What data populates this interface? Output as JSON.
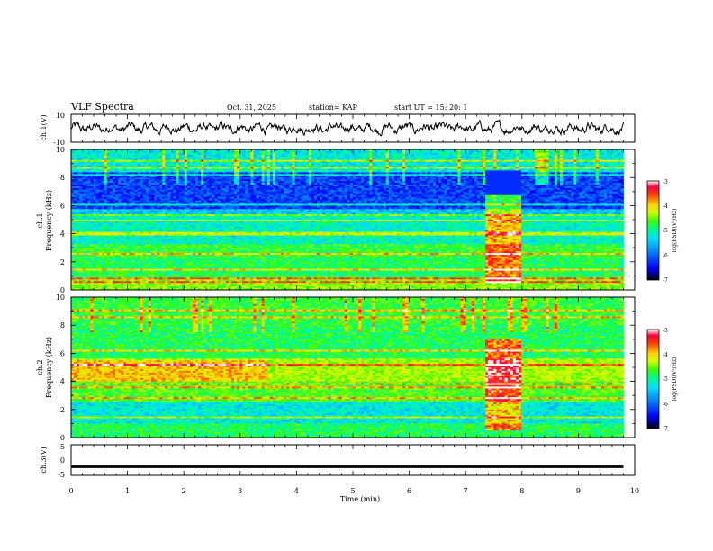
{
  "header": {
    "title": "VLF Spectra",
    "date": "Oct. 31, 2025",
    "station": "station= KAP",
    "start": "start  UT =   15: 20: 1"
  },
  "chart_data": [
    {
      "type": "line",
      "name": "ch1-waveform",
      "ylabel": "ch.1(V)",
      "ylim": [
        -10,
        10
      ],
      "yticklabels": [
        "10",
        "-10"
      ],
      "xlim": [
        0,
        10
      ],
      "series": [
        {
          "name": "ch.1",
          "x_range": [
            0,
            9.8
          ],
          "baseline": 0,
          "amplitude": 6,
          "description_values": "noisy oscillation between about -8 and 8 V"
        }
      ]
    },
    {
      "type": "heatmap",
      "name": "ch1-spectrogram",
      "ylabel_line1": "ch.1",
      "ylabel_line2": "Frequency (kHz)",
      "ylim": [
        0,
        10
      ],
      "yticks": [
        "0",
        "2",
        "4",
        "6",
        "8",
        "10"
      ],
      "xlim": [
        0,
        10
      ],
      "data_x_range": [
        0,
        9.8
      ],
      "burst_interval": [
        7.35,
        8.0
      ],
      "bands_khz": [
        {
          "lo": 0,
          "hi": 0.9,
          "level": -4.6
        },
        {
          "lo": 0.9,
          "hi": 2.2,
          "level": -5.0
        },
        {
          "lo": 2.2,
          "hi": 3.2,
          "level": -4.9
        },
        {
          "lo": 3.2,
          "hi": 5.3,
          "level": -5.3
        },
        {
          "lo": 5.3,
          "hi": 5.8,
          "level": -5.6
        },
        {
          "lo": 5.8,
          "hi": 8.4,
          "level": -6.3
        },
        {
          "lo": 8.4,
          "hi": 10,
          "level": -5.4
        }
      ],
      "colorbar": {
        "label": "log(PSD)(V²/Hz)",
        "range": [
          -7,
          -3
        ],
        "ticks": [
          "-3",
          "-4",
          "-5",
          "-6",
          "-7"
        ]
      }
    },
    {
      "type": "heatmap",
      "name": "ch2-spectrogram",
      "ylabel_line1": "ch.2",
      "ylabel_line2": "Frequency (kHz)",
      "ylim": [
        0,
        10
      ],
      "yticks": [
        "0",
        "2",
        "4",
        "6",
        "8",
        "10"
      ],
      "xlim": [
        0,
        10
      ],
      "data_x_range": [
        0,
        9.8
      ],
      "burst_interval": [
        7.35,
        8.0
      ],
      "bands_khz": [
        {
          "lo": 0,
          "hi": 1.0,
          "level": -5.0
        },
        {
          "lo": 1.0,
          "hi": 2.5,
          "level": -5.4
        },
        {
          "lo": 2.5,
          "hi": 4.0,
          "level": -4.8
        },
        {
          "lo": 4.0,
          "hi": 5.6,
          "level": -4.5
        },
        {
          "lo": 5.6,
          "hi": 8.0,
          "level": -5.0
        },
        {
          "lo": 8.0,
          "hi": 10,
          "level": -4.9
        }
      ],
      "colorbar": {
        "label": "log(PSD)(V²/Hz)",
        "range": [
          -7,
          -3
        ],
        "ticks": [
          "-3",
          "-4",
          "-5",
          "-6",
          "-7"
        ]
      }
    },
    {
      "type": "line",
      "name": "ch3-waveform",
      "ylabel": "ch.3(V)",
      "ylim": [
        -5,
        5
      ],
      "yticklabels": [
        "5",
        "0",
        "-5"
      ],
      "xlim": [
        0,
        10
      ],
      "series": [
        {
          "name": "ch.3",
          "x_range": [
            0,
            9.8
          ],
          "baseline": -2.2,
          "thickness_v": 0.8
        }
      ]
    }
  ],
  "xaxis": {
    "label": "Time  (min)",
    "ticks": [
      "0",
      "1",
      "2",
      "3",
      "4",
      "5",
      "6",
      "7",
      "8",
      "9",
      "10"
    ],
    "range": [
      0,
      10
    ]
  },
  "colors": {
    "waveform": "#000000",
    "frame": "#000000"
  }
}
